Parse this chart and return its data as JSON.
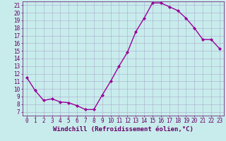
{
  "x": [
    0,
    1,
    2,
    3,
    4,
    5,
    6,
    7,
    8,
    9,
    10,
    11,
    12,
    13,
    14,
    15,
    16,
    17,
    18,
    19,
    20,
    21,
    22,
    23
  ],
  "y": [
    11.5,
    9.8,
    8.5,
    8.7,
    8.3,
    8.2,
    7.8,
    7.3,
    7.3,
    9.2,
    11.0,
    13.0,
    14.8,
    17.5,
    19.3,
    21.3,
    21.3,
    20.8,
    20.3,
    19.3,
    18.0,
    16.5,
    16.5,
    15.3
  ],
  "line_color": "#990099",
  "marker": "D",
  "marker_size": 2,
  "bg_color": "#c8ecec",
  "grid_color": "#aaaacc",
  "xlabel": "Windchill (Refroidissement éolien,°C)",
  "xlim": [
    -0.5,
    23.5
  ],
  "ylim": [
    6.5,
    21.5
  ],
  "yticks": [
    7,
    8,
    9,
    10,
    11,
    12,
    13,
    14,
    15,
    16,
    17,
    18,
    19,
    20,
    21
  ],
  "xticks": [
    0,
    1,
    2,
    3,
    4,
    5,
    6,
    7,
    8,
    9,
    10,
    11,
    12,
    13,
    14,
    15,
    16,
    17,
    18,
    19,
    20,
    21,
    22,
    23
  ],
  "tick_label_color": "#660066",
  "axis_color": "#660066",
  "xlabel_color": "#660066",
  "xlabel_fontsize": 6.5,
  "tick_fontsize": 5.5,
  "line_width": 1.0
}
